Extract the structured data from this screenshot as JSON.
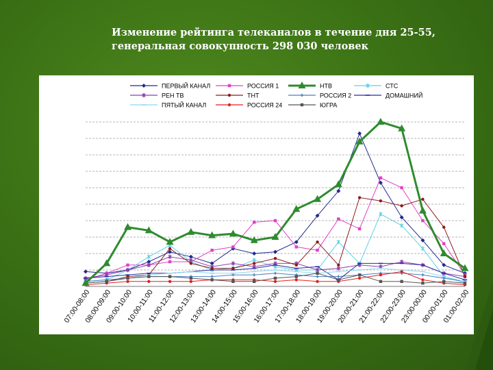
{
  "slide": {
    "title_line1": "Изменение рейтинга телеканалов в течение дня 25-55,",
    "title_line2": "генеральная совокупность 298 030 человек"
  },
  "chart_data": {
    "type": "line",
    "title": "Изменение рейтинга телеканалов в течение дня 25-55, генеральная совокупность 298 030 человек",
    "xlabel": "",
    "ylabel": "",
    "ylim": [
      0,
      10
    ],
    "grid": true,
    "legend_position": "top",
    "categories": [
      "07:00-08:00",
      "08:00-09:00",
      "09:00-10:00",
      "10:00-11:00",
      "11:00-12:00",
      "12:00-13:00",
      "13:00-14:00",
      "14:00-15:00",
      "15:00-16:00",
      "16:00-17:00",
      "17:00-18:00",
      "18:00-19:00",
      "19:00-20:00",
      "20:00-21:00",
      "21:00-22:00",
      "22:00-23:00",
      "23:00-00:00",
      "00:00-01:00",
      "01:00-02:00"
    ],
    "series": [
      {
        "name": "ПЕРВЫЙ КАНАЛ",
        "color": "#1f2a8c",
        "marker": "diamond",
        "values": [
          0.9,
          0.8,
          1.0,
          1.5,
          2.1,
          1.8,
          1.4,
          2.3,
          2.0,
          2.1,
          2.7,
          4.3,
          5.8,
          9.3,
          6.3,
          4.2,
          2.8,
          1.3,
          0.8
        ]
      },
      {
        "name": "РОССИЯ 1",
        "color": "#e040c8",
        "marker": "square",
        "values": [
          0.4,
          0.8,
          1.3,
          1.3,
          1.5,
          1.5,
          2.2,
          2.4,
          3.9,
          4.0,
          2.4,
          2.2,
          4.1,
          3.5,
          6.6,
          6.0,
          4.0,
          2.6,
          0.7
        ]
      },
      {
        "name": "НТВ",
        "color": "#2e8b2e",
        "marker": "triangle",
        "values": [
          0.2,
          1.4,
          3.6,
          3.4,
          2.7,
          3.3,
          3.1,
          3.2,
          2.8,
          3.0,
          4.7,
          5.3,
          6.2,
          8.8,
          10.0,
          9.6,
          4.6,
          2.0,
          1.1
        ]
      },
      {
        "name": "СТС",
        "color": "#5fd0e6",
        "marker": "star",
        "values": [
          0.3,
          0.4,
          1.0,
          1.8,
          2.5,
          1.5,
          1.0,
          1.1,
          1.6,
          1.2,
          1.0,
          1.0,
          2.7,
          1.4,
          4.4,
          3.7,
          2.3,
          0.6,
          0.2
        ]
      },
      {
        "name": "РЕН ТВ",
        "color": "#8e3fae",
        "marker": "star",
        "values": [
          0.5,
          0.7,
          1.0,
          1.3,
          1.8,
          1.6,
          1.2,
          1.4,
          1.2,
          1.4,
          1.4,
          1.0,
          1.1,
          1.3,
          1.2,
          1.5,
          1.3,
          0.8,
          0.6
        ]
      },
      {
        "name": "ТНТ",
        "color": "#8c1a1a",
        "marker": "circle",
        "values": [
          0.2,
          0.3,
          0.6,
          0.7,
          2.3,
          1.4,
          1.1,
          1.1,
          1.4,
          1.7,
          1.3,
          2.7,
          1.3,
          5.4,
          5.2,
          4.9,
          5.3,
          3.6,
          0.6
        ]
      },
      {
        "name": "РОССИЯ 2",
        "color": "#4a7fc0",
        "marker": "plus",
        "values": [
          0.3,
          0.4,
          0.5,
          0.6,
          0.6,
          0.6,
          0.6,
          0.7,
          0.7,
          0.8,
          0.7,
          0.6,
          0.6,
          0.7,
          0.8,
          0.8,
          0.7,
          0.5,
          0.3
        ]
      },
      {
        "name": "ДОМАШНИЙ",
        "color": "#2a2aa0",
        "marker": "dash",
        "values": [
          0.5,
          0.6,
          0.7,
          0.8,
          0.8,
          0.9,
          1.0,
          1.0,
          1.1,
          1.3,
          1.1,
          1.2,
          0.4,
          1.4,
          1.4,
          1.4,
          1.3,
          0.8,
          0.4
        ]
      },
      {
        "name": "ПЯТЫЙ КАНАЛ",
        "color": "#8fd8f0",
        "marker": "dash",
        "values": [
          0.2,
          0.3,
          0.5,
          0.7,
          0.8,
          0.9,
          0.8,
          0.8,
          0.9,
          1.0,
          0.9,
          0.8,
          0.9,
          1.0,
          1.1,
          1.0,
          0.9,
          0.6,
          0.3
        ]
      },
      {
        "name": "РОССИЯ 24",
        "color": "#e02020",
        "marker": "circle",
        "values": [
          0.1,
          0.2,
          0.3,
          0.3,
          0.3,
          0.3,
          0.4,
          0.4,
          0.4,
          0.3,
          0.4,
          0.3,
          0.3,
          0.5,
          0.7,
          0.9,
          0.4,
          0.2,
          0.1
        ]
      },
      {
        "name": "ЮГРА",
        "color": "#555555",
        "marker": "square",
        "values": [
          0.2,
          0.3,
          0.5,
          0.6,
          0.6,
          0.5,
          0.4,
          0.3,
          0.3,
          0.5,
          0.6,
          0.8,
          0.4,
          0.7,
          0.3,
          0.3,
          0.2,
          0.3,
          0.2
        ]
      }
    ]
  }
}
